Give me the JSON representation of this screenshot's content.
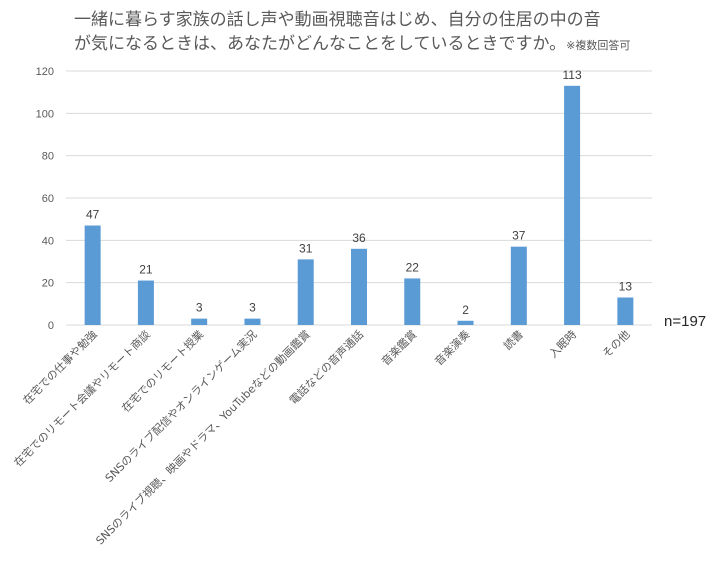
{
  "title": {
    "line1": "一緒に暮らす家族の話し声や動画視聴音はじめ、自分の住居の中の音",
    "line2": "が気になるときは、あなたがどんなことをしているときですか。",
    "note": "※複数回答可"
  },
  "n_label": "n=197",
  "colors": {
    "bar": "#5b9bd5",
    "grid": "#d9d9d9",
    "axis_text": "#595959"
  },
  "chart_data": {
    "type": "bar",
    "title": "一緒に暮らす家族の話し声や動画視聴音はじめ、自分の住居の中の音が気になるときは、あなたがどんなことをしているときですか。※複数回答可",
    "categories": [
      "在宅での仕事や勉強",
      "在宅でのリモート会議やリモート商談",
      "在宅でのリモート授業",
      "SNSのライブ配信やオンラインゲーム実況",
      "SNSのライブ視聴、映画やドラマ、YouTubeなどの動画鑑賞",
      "電話などの音声通話",
      "音楽鑑賞",
      "音楽演奏",
      "読書",
      "入眠時",
      "その他"
    ],
    "values": [
      47,
      21,
      3,
      3,
      31,
      36,
      22,
      2,
      37,
      113,
      13
    ],
    "yticks": [
      0,
      20,
      40,
      60,
      80,
      100,
      120
    ],
    "ylim": [
      0,
      120
    ],
    "grid": true,
    "legend": "none"
  }
}
